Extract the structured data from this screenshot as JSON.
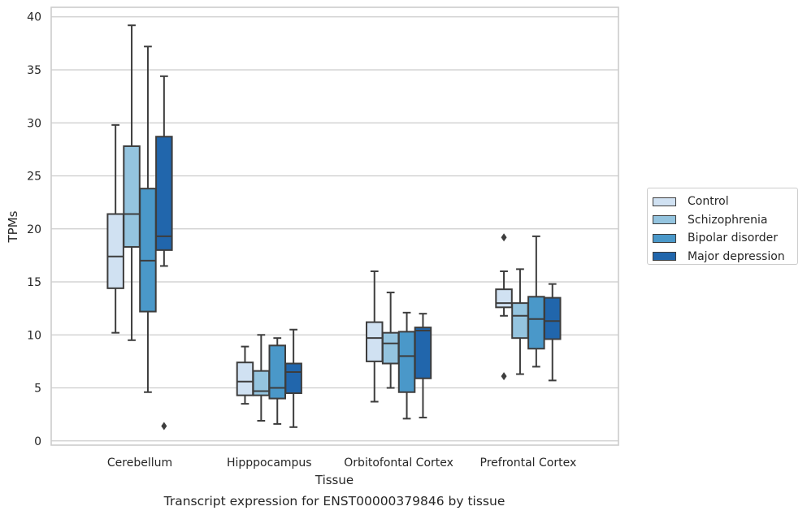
{
  "chart_data": {
    "type": "box",
    "title": "Transcript expression for ENST00000379846 by tissue",
    "xlabel": "Tissue",
    "ylabel": "TPMs",
    "ylim": [
      -0.4,
      40.9
    ],
    "yticks": [
      0,
      5,
      10,
      15,
      20,
      25,
      30,
      35,
      40
    ],
    "grid": "horizontal",
    "legend_position": "right",
    "categories": [
      "Cerebellum",
      "Hipppocampus",
      "Orbitofontal Cortex",
      "Prefrontal Cortex"
    ],
    "series": [
      {
        "name": "Control",
        "color": "#d0e1f2",
        "boxes": [
          {
            "whislo": 10.2,
            "q1": 14.4,
            "med": 17.4,
            "q3": 21.4,
            "whishi": 29.8,
            "fliers": []
          },
          {
            "whislo": 3.5,
            "q1": 4.3,
            "med": 5.6,
            "q3": 7.4,
            "whishi": 8.9,
            "fliers": []
          },
          {
            "whislo": 3.7,
            "q1": 7.5,
            "med": 9.7,
            "q3": 11.2,
            "whishi": 16.0,
            "fliers": []
          },
          {
            "whislo": 11.8,
            "q1": 12.6,
            "med": 13.0,
            "q3": 14.3,
            "whishi": 16.0,
            "fliers": [
              19.2,
              6.1
            ]
          }
        ]
      },
      {
        "name": "Schizophrenia",
        "color": "#94c4df",
        "boxes": [
          {
            "whislo": 9.5,
            "q1": 18.3,
            "med": 21.4,
            "q3": 27.8,
            "whishi": 39.2,
            "fliers": []
          },
          {
            "whislo": 1.9,
            "q1": 4.3,
            "med": 4.7,
            "q3": 6.6,
            "whishi": 10.0,
            "fliers": []
          },
          {
            "whislo": 5.0,
            "q1": 7.3,
            "med": 9.2,
            "q3": 10.2,
            "whishi": 14.0,
            "fliers": []
          },
          {
            "whislo": 6.3,
            "q1": 9.7,
            "med": 11.8,
            "q3": 13.0,
            "whishi": 16.2,
            "fliers": []
          }
        ]
      },
      {
        "name": "Bipolar disorder",
        "color": "#4a98c9",
        "boxes": [
          {
            "whislo": 4.6,
            "q1": 12.2,
            "med": 17.0,
            "q3": 23.8,
            "whishi": 37.2,
            "fliers": []
          },
          {
            "whislo": 1.6,
            "q1": 4.0,
            "med": 5.0,
            "q3": 9.0,
            "whishi": 9.7,
            "fliers": []
          },
          {
            "whislo": 2.1,
            "q1": 4.6,
            "med": 8.0,
            "q3": 10.3,
            "whishi": 12.1,
            "fliers": []
          },
          {
            "whislo": 7.0,
            "q1": 8.7,
            "med": 11.5,
            "q3": 13.6,
            "whishi": 19.3,
            "fliers": []
          }
        ]
      },
      {
        "name": "Major depression",
        "color": "#2166ac",
        "boxes": [
          {
            "whislo": 16.5,
            "q1": 18.0,
            "med": 19.3,
            "q3": 28.7,
            "whishi": 34.4,
            "fliers": [
              1.4
            ]
          },
          {
            "whislo": 1.3,
            "q1": 4.5,
            "med": 6.5,
            "q3": 7.3,
            "whishi": 10.5,
            "fliers": []
          },
          {
            "whislo": 2.2,
            "q1": 5.9,
            "med": 10.4,
            "q3": 10.7,
            "whishi": 12.0,
            "fliers": []
          },
          {
            "whislo": 5.7,
            "q1": 9.6,
            "med": 11.3,
            "q3": 13.5,
            "whishi": 14.8,
            "fliers": []
          }
        ]
      }
    ]
  }
}
